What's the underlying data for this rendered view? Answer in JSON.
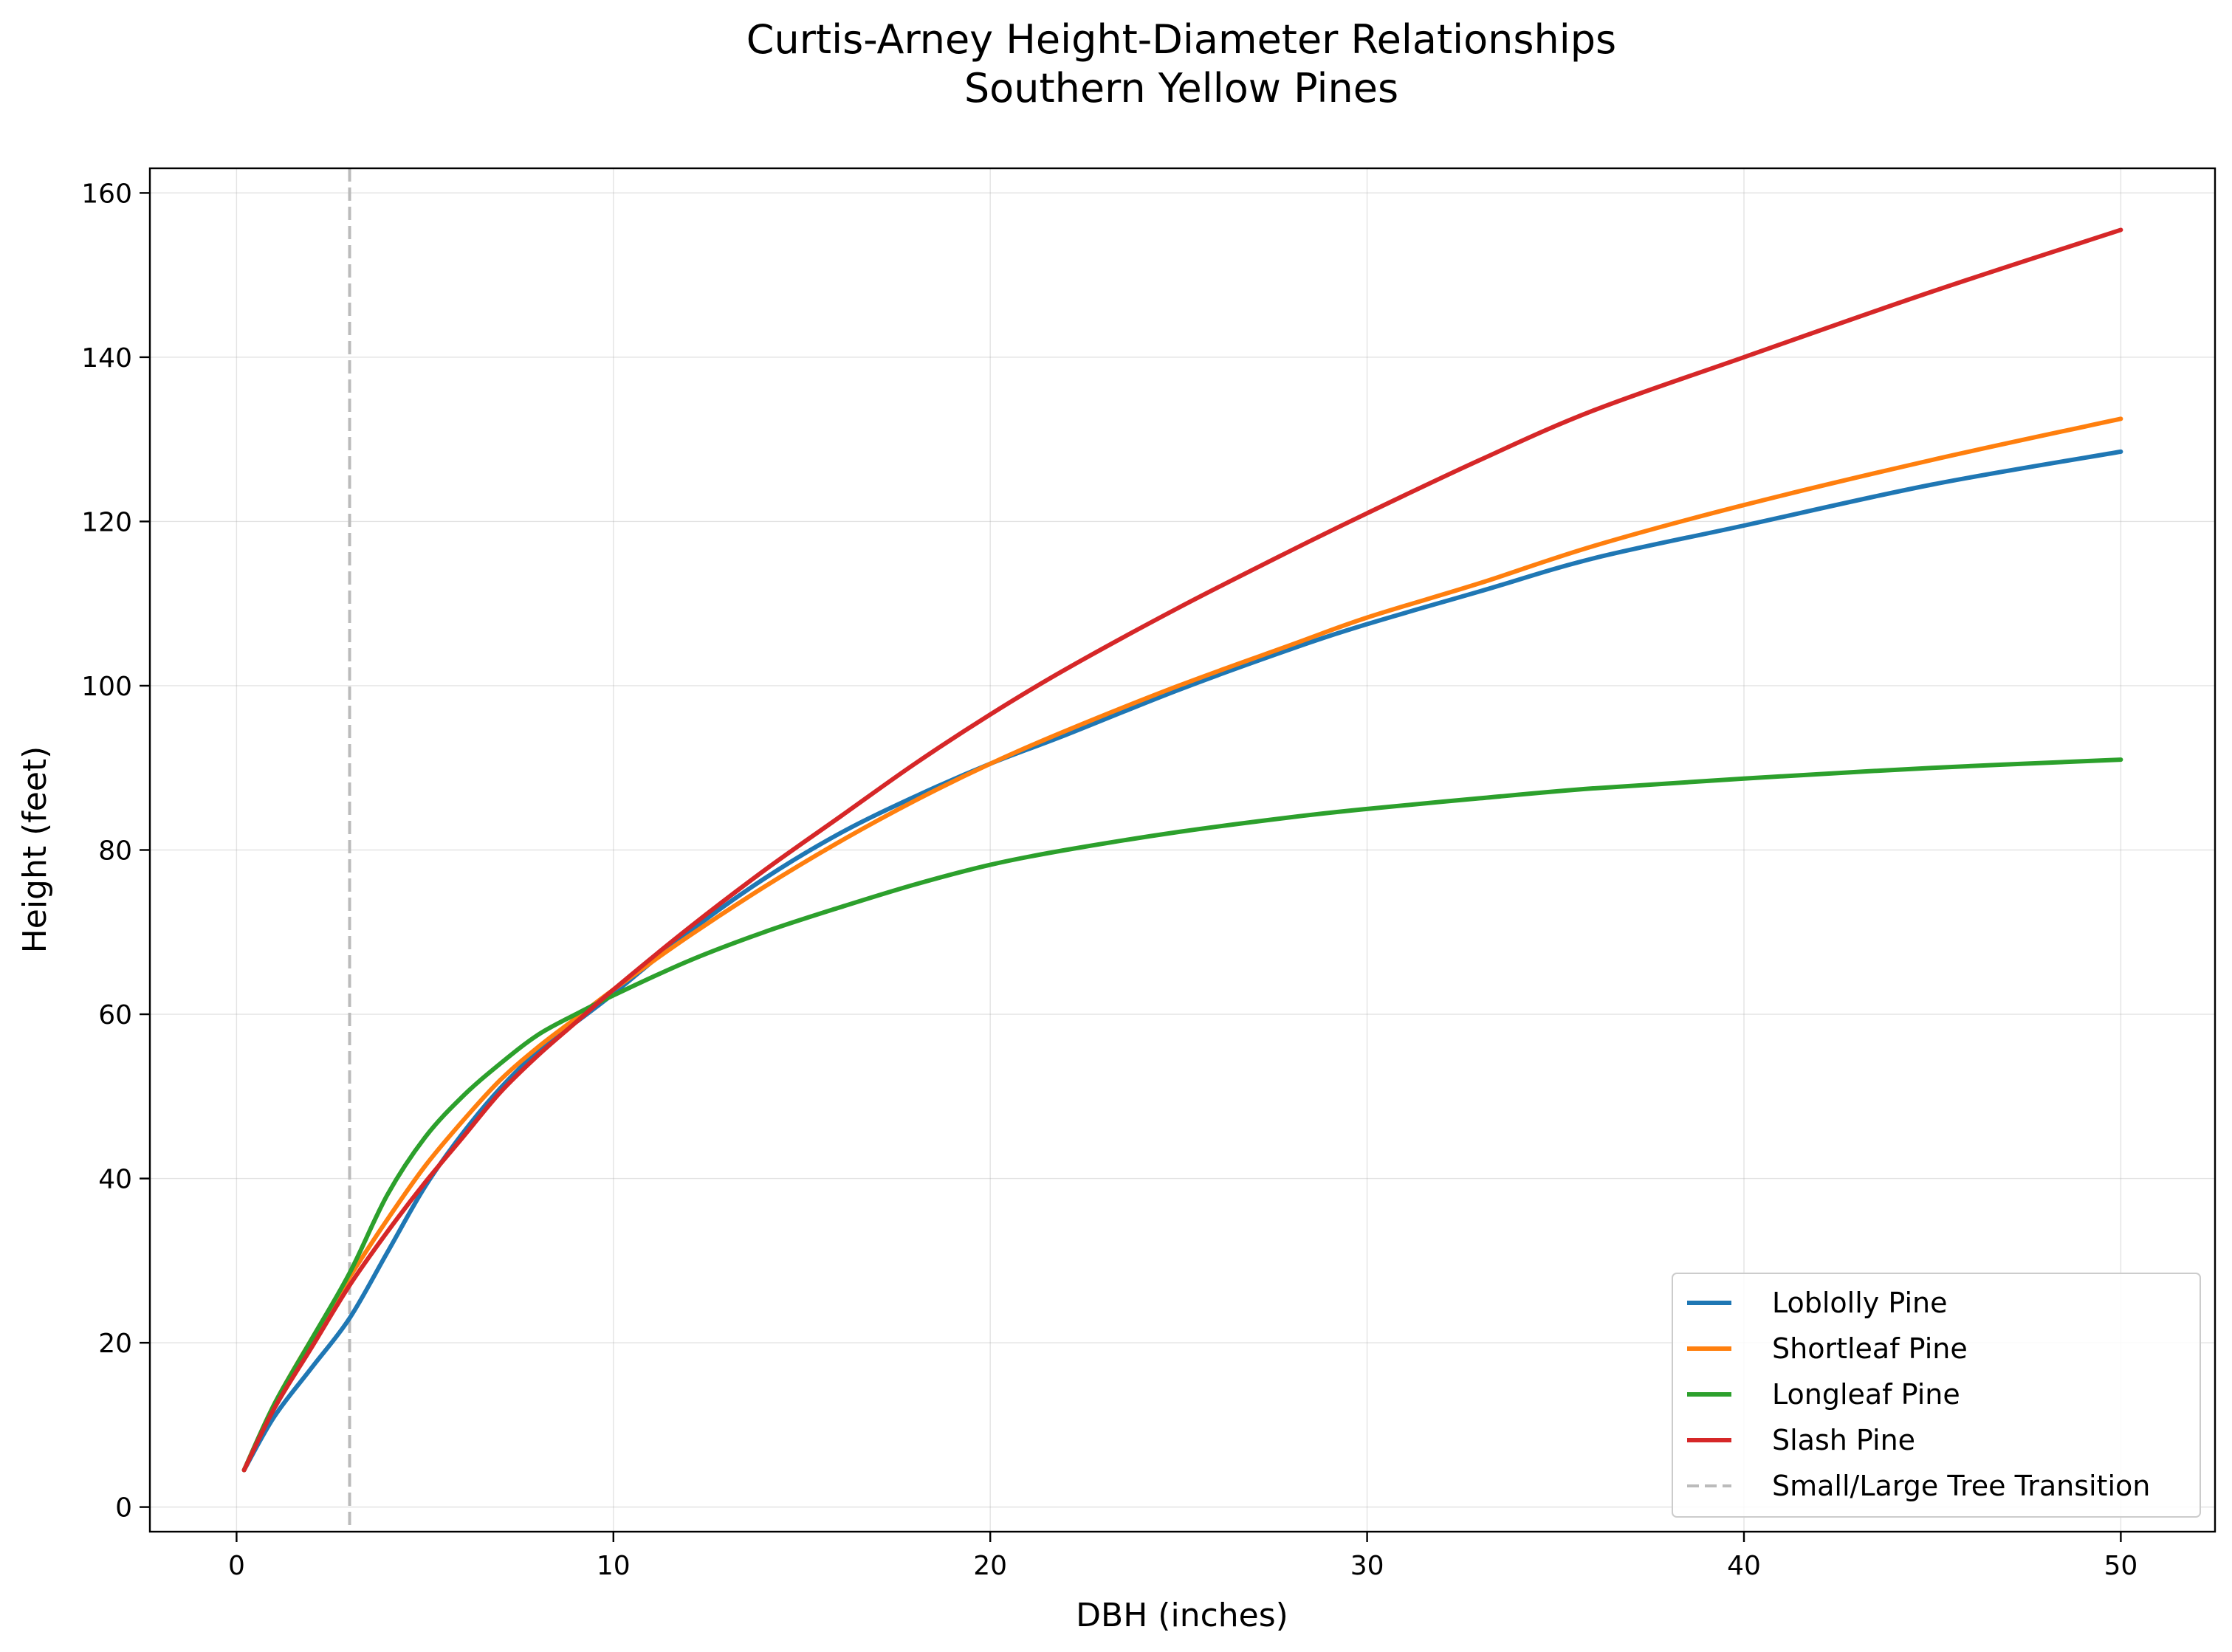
{
  "chart_data": {
    "type": "line",
    "title": "Curtis-Arney Height-Diameter Relationships",
    "subtitle": "Southern Yellow Pines",
    "xlabel": "DBH (inches)",
    "ylabel": "Height (feet)",
    "xlim": [
      -2.3,
      52.5
    ],
    "ylim": [
      -3,
      163
    ],
    "xticks": [
      0,
      10,
      20,
      30,
      40,
      50
    ],
    "yticks": [
      0,
      20,
      40,
      60,
      80,
      100,
      120,
      140,
      160
    ],
    "grid": true,
    "legend_position": "lower-right",
    "x": [
      0.2,
      1,
      2,
      3,
      4,
      5,
      6,
      7,
      8,
      9,
      10,
      12,
      14,
      16,
      18,
      20,
      22,
      25,
      28,
      30,
      33,
      36,
      40,
      45,
      50
    ],
    "series": [
      {
        "name": "Loblolly Pine",
        "color": "#1f77b4",
        "style": "solid",
        "values": [
          4.5,
          11,
          17,
          23,
          31,
          39,
          45.5,
          51,
          55.5,
          59,
          62.5,
          70,
          76.5,
          82,
          86.5,
          90.5,
          94,
          99.5,
          104.5,
          107.5,
          111.5,
          115.5,
          119.5,
          124.5,
          128.5
        ]
      },
      {
        "name": "Shortleaf Pine",
        "color": "#ff7f0e",
        "style": "solid",
        "values": [
          4.5,
          12.5,
          20.5,
          28,
          35,
          41.5,
          47,
          52,
          56,
          59.5,
          63,
          69.5,
          75.5,
          81,
          86,
          90.5,
          94.5,
          100,
          105,
          108.3,
          112.5,
          117,
          122,
          127.5,
          132.5
        ]
      },
      {
        "name": "Longleaf Pine",
        "color": "#2ca02c",
        "style": "solid",
        "values": [
          4.5,
          12.5,
          20.5,
          28.5,
          38,
          45,
          50,
          54,
          57.5,
          60,
          62.3,
          66.5,
          70,
          73,
          75.8,
          78.2,
          80,
          82.2,
          84,
          85,
          86.3,
          87.5,
          88.7,
          90,
          91
        ]
      },
      {
        "name": "Slash Pine",
        "color": "#d62728",
        "style": "solid",
        "values": [
          4.5,
          12,
          19.5,
          27,
          33.5,
          39.5,
          45,
          50.5,
          55,
          59,
          63,
          70.5,
          77.5,
          84,
          90.5,
          96.5,
          102,
          109.5,
          116.5,
          121,
          127.5,
          133.5,
          140,
          148,
          155.5
        ]
      }
    ],
    "reference_lines": [
      {
        "name": "Small/Large Tree Transition",
        "x": 3,
        "color": "#bbbbbb",
        "style": "dashed"
      }
    ]
  }
}
